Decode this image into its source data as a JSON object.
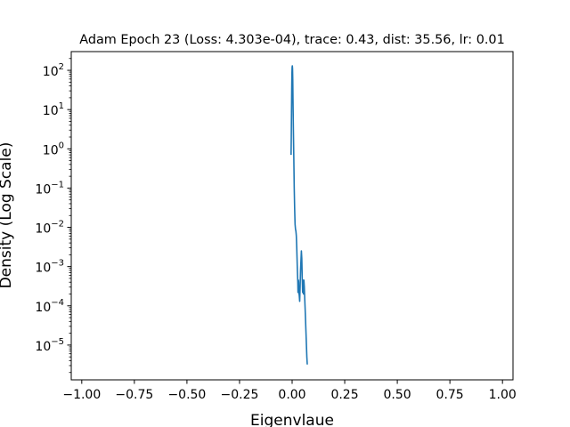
{
  "chart_data": {
    "type": "line",
    "title": "Adam Epoch 23 (Loss: 4.303e-04), trace: 0.43, dist: 35.56, lr: 0.01",
    "xlabel": "Eigenvlaue",
    "ylabel": "Density (Log Scale)",
    "xlim": [
      -1.05,
      1.05
    ],
    "ylim": [
      1.3e-06,
      300
    ],
    "yscale": "log",
    "grid": false,
    "x_ticks": [
      -1.0,
      -0.75,
      -0.5,
      -0.25,
      0.0,
      0.25,
      0.5,
      0.75,
      1.0
    ],
    "x_tick_labels": [
      "−1.00",
      "−0.75",
      "−0.50",
      "−0.25",
      "0.00",
      "0.25",
      "0.50",
      "0.75",
      "1.00"
    ],
    "y_ticks": [
      1e-05,
      0.0001,
      0.001,
      0.01,
      0.1,
      1,
      10,
      100
    ],
    "y_tick_exponents": [
      "−5",
      "−4",
      "−3",
      "−2",
      "−1",
      "0",
      "1",
      "2"
    ],
    "y_tick_base": "10",
    "series": [
      {
        "color": "#1f77b4",
        "x": [
          -0.005,
          -0.004,
          -0.003,
          -0.002,
          -0.001,
          0.0,
          0.001,
          0.002,
          0.003,
          0.004,
          0.006,
          0.008,
          0.01,
          0.012,
          0.014,
          0.016,
          0.018,
          0.019,
          0.02,
          0.022,
          0.025,
          0.027,
          0.028,
          0.029,
          0.03,
          0.031,
          0.032,
          0.034,
          0.036,
          0.038,
          0.04,
          0.042,
          0.044,
          0.046,
          0.048,
          0.05,
          0.051,
          0.052,
          0.053,
          0.054,
          0.056,
          0.058,
          0.06,
          0.062,
          0.064,
          0.066,
          0.068,
          0.07,
          0.072
        ],
        "y": [
          0.7,
          2,
          8,
          30,
          80,
          120,
          130,
          110,
          60,
          20,
          3,
          0.6,
          0.1,
          0.03,
          0.012,
          0.009,
          0.008,
          0.007,
          0.006,
          0.003,
          0.0008,
          0.0004,
          0.00022,
          0.0003,
          0.00045,
          0.0004,
          0.00022,
          0.00018,
          0.00013,
          0.0003,
          0.0008,
          0.0014,
          0.0025,
          0.0016,
          0.0005,
          0.00022,
          0.0004,
          0.00045,
          0.0003,
          0.0002,
          0.00045,
          0.0003,
          0.00015,
          8e-05,
          4e-05,
          2e-05,
          1e-05,
          5e-06,
          3.2e-06
        ]
      }
    ]
  }
}
